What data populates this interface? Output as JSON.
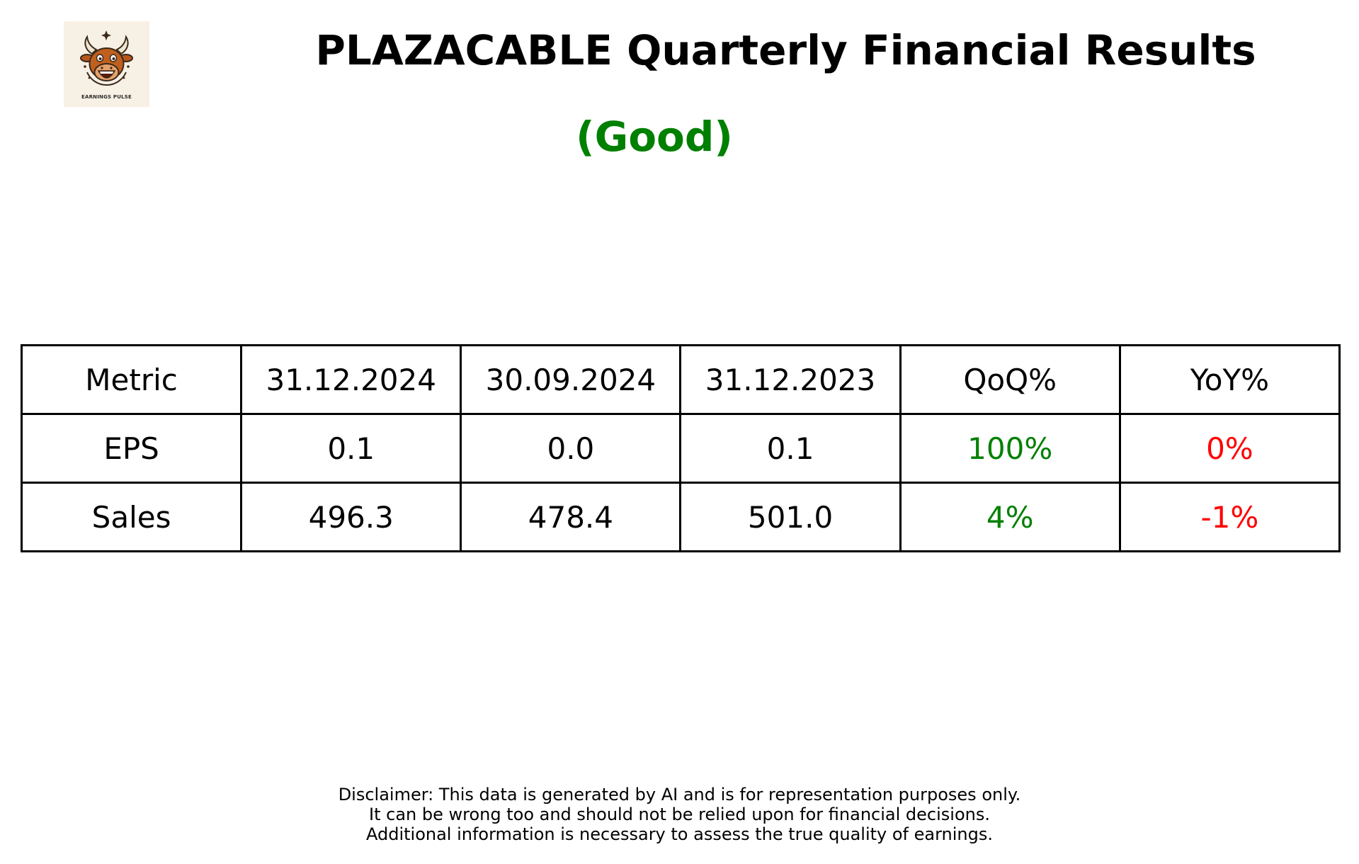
{
  "logo": {
    "icon": "bull-mascot-icon",
    "text": "EARNINGS PULSE"
  },
  "title": "PLAZACABLE Quarterly Financial Results",
  "rating": {
    "text": "(Good)",
    "color": "#008000"
  },
  "colors": {
    "positive": "#008000",
    "negative": "#ff0000",
    "border": "#000000"
  },
  "table": {
    "headers": [
      "Metric",
      "31.12.2024",
      "30.09.2024",
      "31.12.2023",
      "QoQ%",
      "YoY%"
    ],
    "rows": [
      {
        "cells": [
          "EPS",
          "0.1",
          "0.0",
          "0.1",
          "100%",
          "0%"
        ],
        "cell_colors": [
          null,
          null,
          null,
          null,
          "#008000",
          "#ff0000"
        ]
      },
      {
        "cells": [
          "Sales",
          "496.3",
          "478.4",
          "501.0",
          "4%",
          "-1%"
        ],
        "cell_colors": [
          null,
          null,
          null,
          null,
          "#008000",
          "#ff0000"
        ]
      }
    ]
  },
  "disclaimer": [
    "Disclaimer: This data is generated by AI and is for representation purposes only.",
    "It can be wrong too and should not be relied upon for financial decisions.",
    "Additional information is necessary to assess the true quality of earnings."
  ]
}
